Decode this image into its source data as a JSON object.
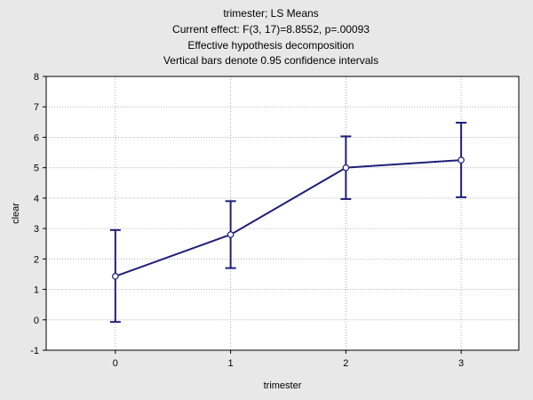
{
  "chart_data": {
    "type": "line",
    "title_lines": [
      "trimester; LS Means",
      "Current effect: F(3, 17)=8.8552, p=.00093",
      "Effective hypothesis decomposition",
      "Vertical bars denote 0.95 confidence intervals"
    ],
    "xlabel": "trimester",
    "ylabel": "clear",
    "x": [
      0,
      1,
      2,
      3
    ],
    "x_ticks": [
      "0",
      "1",
      "2",
      "3"
    ],
    "y_ticks": [
      "8",
      "7",
      "6",
      "5",
      "4",
      "3",
      "2",
      "1",
      "0",
      "-1"
    ],
    "ylim": [
      -1,
      8
    ],
    "grid": true,
    "series": [
      {
        "values": [
          1.43,
          2.8,
          5.0,
          5.25
        ],
        "ci_lower": [
          -0.07,
          1.7,
          3.97,
          4.03
        ],
        "ci_upper": [
          2.95,
          3.9,
          6.03,
          6.48
        ]
      }
    ],
    "colors": {
      "line": "#1f1f7a",
      "grid": "#b0b0b0",
      "plot_bg": "#ffffff",
      "page_bg": "#e8e8e8"
    }
  }
}
